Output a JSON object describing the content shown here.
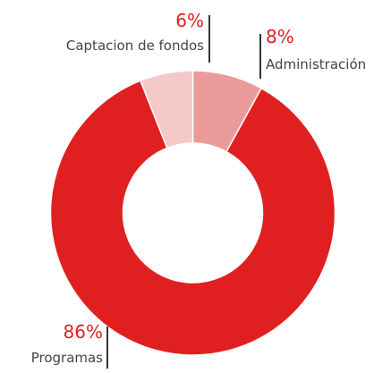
{
  "chart_data": {
    "type": "donut",
    "categories": [
      "Administración",
      "Programas",
      "Captacion de fondos"
    ],
    "values": [
      8,
      86,
      6
    ],
    "value_labels": [
      "8%",
      "86%",
      "6%"
    ],
    "colors": [
      "#eb9a9a",
      "#e02020",
      "#f4c8c8"
    ]
  }
}
